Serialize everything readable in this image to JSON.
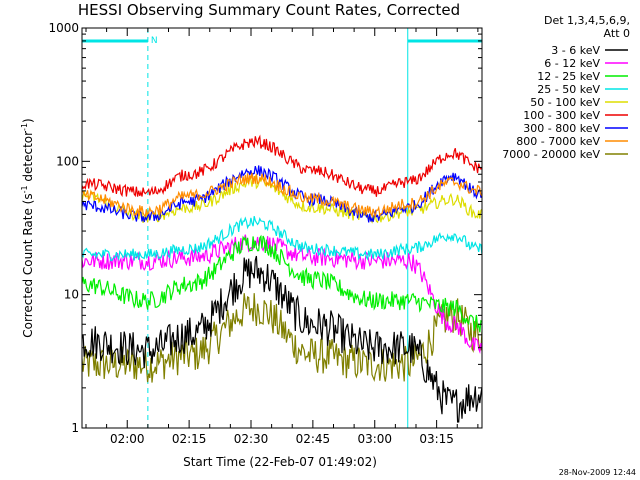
{
  "chart_data": {
    "type": "line",
    "title": "HESSI Observing Summary Count Rates, Corrected",
    "xlabel": "Start Time (22-Feb-07 01:49:02)",
    "ylabel_main": "Corrected Count Rate (s",
    "ylabel_sup1": "-1",
    "ylabel_mid": " detector",
    "ylabel_sup2": "-1",
    "ylabel_end": ")",
    "y_scale": "log",
    "ylim": [
      1,
      1000
    ],
    "x_start": "01:49:02",
    "x_end": "03:26:00",
    "x_ticks": [
      "02:00",
      "02:15",
      "02:30",
      "02:45",
      "03:00",
      "03:15"
    ],
    "y_ticks": [
      "1",
      "10",
      "100",
      "1000"
    ],
    "legend_placement": "right",
    "legend_header": [
      "Det 1,3,4,5,6,9,",
      "Att 0"
    ],
    "night_intervals": [
      {
        "start": "01:49:02",
        "end": "02:05:00",
        "label": "N"
      },
      {
        "start": "03:08:00",
        "end": "03:26:00",
        "label": ""
      }
    ],
    "series": [
      {
        "name": "3 - 6 keV",
        "color": "#000000"
      },
      {
        "name": "6 - 12 keV",
        "color": "#ff00ff"
      },
      {
        "name": "12 - 25 keV",
        "color": "#00ee00"
      },
      {
        "name": "25 - 50 keV",
        "color": "#00e5e5"
      },
      {
        "name": "50 - 100 keV",
        "color": "#dddd00"
      },
      {
        "name": "100 - 300 keV",
        "color": "#ee0000"
      },
      {
        "name": "300 - 800 keV",
        "color": "#0000ff"
      },
      {
        "name": "800 - 7000 keV",
        "color": "#ff8c00"
      },
      {
        "name": "7000 - 20000 keV",
        "color": "#808000"
      }
    ],
    "profiles": [
      {
        "time": "01:49:02",
        "values": [
          4.5,
          18,
          12,
          20,
          55,
          68,
          47,
          55,
          3
        ]
      },
      {
        "time": "02:05",
        "values": [
          3.8,
          18,
          9,
          20,
          38,
          58,
          38,
          42,
          3
        ]
      },
      {
        "time": "02:15",
        "values": [
          5,
          19,
          12,
          22,
          45,
          80,
          50,
          55,
          3.5
        ]
      },
      {
        "time": "02:31",
        "values": [
          15,
          25,
          25,
          35,
          70,
          140,
          85,
          75,
          8
        ]
      },
      {
        "time": "02:45",
        "values": [
          6,
          19,
          13,
          22,
          45,
          85,
          52,
          52,
          3.5
        ]
      },
      {
        "time": "03:00",
        "values": [
          4,
          18,
          9,
          20,
          38,
          60,
          38,
          42,
          3
        ]
      },
      {
        "time": "03:08",
        "values": [
          4,
          18,
          9,
          22,
          42,
          70,
          45,
          48,
          3
        ]
      },
      {
        "time": "03:19",
        "values": [
          1.5,
          6,
          8,
          28,
          52,
          115,
          78,
          70,
          7
        ]
      },
      {
        "time": "03:25",
        "values": [
          1.8,
          4,
          6,
          22,
          40,
          90,
          58,
          60,
          5
        ]
      }
    ],
    "timestamp": "28-Nov-2009 12:44"
  }
}
